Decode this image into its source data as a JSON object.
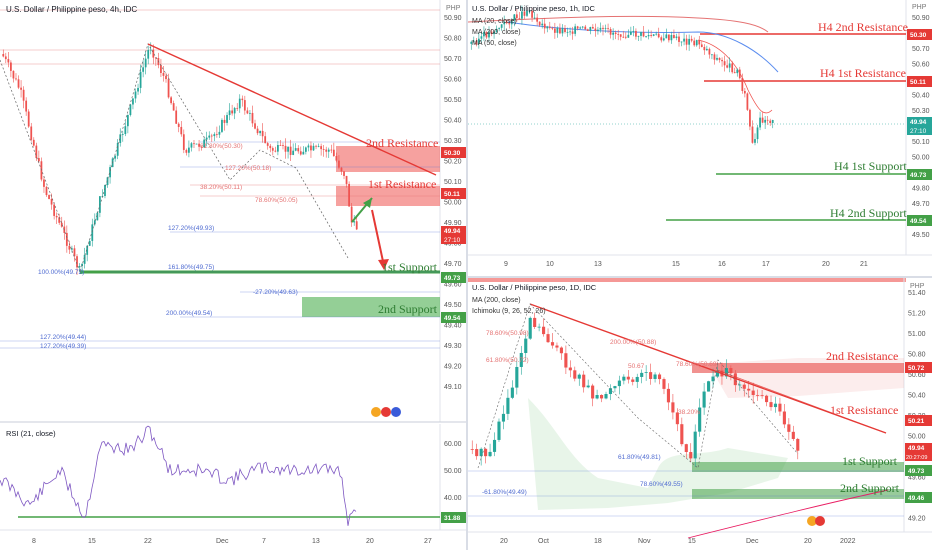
{
  "colors": {
    "up": "#26a69a",
    "down": "#ef5350",
    "res": "#e53935",
    "sup": "#43a047",
    "fib": "#4f6bd1",
    "axis": "#555555",
    "grid": "#f0f3fa"
  },
  "panel_4h": {
    "title": "U.S. Dollar / Philippine peso, 4h, IDC",
    "currency": "PHP",
    "y_ticks": [
      "50.90",
      "50.80",
      "50.70",
      "50.60",
      "50.50",
      "50.40",
      "50.30",
      "50.20",
      "50.10",
      "50.00",
      "49.90",
      "49.80",
      "49.70",
      "49.60",
      "49.50",
      "49.40",
      "49.30",
      "49.20",
      "49.10"
    ],
    "x_ticks": [
      "8",
      "15",
      "22",
      "Dec",
      "7",
      "13",
      "20",
      "27"
    ],
    "labels": {
      "res2": "2nd Resistance",
      "res1": "1st Resistance",
      "sup1": "1st Support",
      "sup2": "2nd Support"
    },
    "fibs": {
      "f1": "61.80%(50.30)",
      "f2": "127.20%(50.18)",
      "f3": "38.20%(50.11)",
      "f4": "78.60%(50.05)",
      "f5": "127.20%(49.93)",
      "f6": "161.80%(49.75)",
      "f7": "100.00%(49.72)",
      "f8": "-27.20%(49.63)",
      "f9": "200.00%(49.54)",
      "f10": "127.20%(49.44)",
      "f11": "127.20%(49.39)"
    },
    "badges": {
      "b1": "50.30",
      "b2": "50.11",
      "b3": "49.94",
      "b3t": "27:10",
      "b4": "49.73",
      "b5": "49.54"
    },
    "rsi": {
      "title": "RSI (21, close)",
      "ticks": [
        "60.00",
        "50.00",
        "40.00"
      ],
      "badge": "31.88"
    }
  },
  "panel_1h": {
    "title": "U.S. Dollar / Philippine peso, 1h, IDC",
    "currency": "PHP",
    "legend": [
      "MA (20, close)",
      "MA (200, close)",
      "MA (50, close)"
    ],
    "y_ticks": [
      "50.90",
      "50.80",
      "50.70",
      "50.60",
      "50.50",
      "50.40",
      "50.30",
      "50.20",
      "50.10",
      "50.00",
      "49.90",
      "49.80",
      "49.70",
      "49.60",
      "49.50"
    ],
    "x_ticks": [
      "9",
      "10",
      "13",
      "15",
      "16",
      "17",
      "20",
      "21"
    ],
    "labels": {
      "res2": "H4 2nd Resistance",
      "res1": "H4 1st Resistance",
      "sup1": "H4 1st Support",
      "sup2": "H4 2nd Support"
    },
    "badges": {
      "b1": "50.30",
      "b2": "50.11",
      "b3": "49.94",
      "b3t": "27:10",
      "b4": "49.73",
      "b5": "49.54"
    }
  },
  "panel_1d": {
    "title": "U.S. Dollar / Philippine peso, 1D, IDC",
    "currency": "PHP",
    "legend": [
      "MA (200, close)",
      "Ichimoku (9, 26, 52, 26)"
    ],
    "y_ticks": [
      "51.40",
      "51.20",
      "51.00",
      "50.80",
      "50.60",
      "50.40",
      "50.20",
      "50.00",
      "49.80",
      "49.60",
      "49.40",
      "49.20"
    ],
    "x_ticks": [
      "20",
      "Oct",
      "18",
      "Nov",
      "15",
      "Dec",
      "20",
      "2022"
    ],
    "labels": {
      "res2": "2nd Resistance",
      "res1": "1st Resistance",
      "sup1": "1st Support",
      "sup2": "2nd Support"
    },
    "fibs": {
      "f1": "78.60%(50.98)",
      "f2": "200.00%(50.88)",
      "f3": "61.80%(50.72)",
      "f4": "50.67",
      "f5": "78.60%(50.69)",
      "f6": "38.20%",
      "f7": "61.80%(49.81)",
      "f8": "-61.80%(49.49)",
      "f9": "78.60%(49.55)"
    },
    "badges": {
      "b1": "50.72",
      "b2": "50.21",
      "b3": "49.94",
      "b3t": "20:27:09",
      "b4": "49.73",
      "b5": "49.46"
    }
  },
  "chart_data": [
    {
      "type": "line",
      "title": "U.S. Dollar / Philippine peso, 4h, IDC",
      "x": [
        "8",
        "15",
        "22",
        "Dec",
        "7",
        "13",
        "20"
      ],
      "series": [
        {
          "values": [
            50.55,
            49.72,
            50.78,
            50.3,
            50.35,
            50.3,
            49.94
          ]
        }
      ],
      "levels": {
        "2nd Resistance": 50.3,
        "1st Resistance": 50.11,
        "1st Support": 49.73,
        "2nd Support": 49.54
      },
      "ylim": [
        49.05,
        50.95
      ]
    },
    {
      "type": "line",
      "title": "RSI (21, close)",
      "ylim": [
        28,
        66
      ],
      "levels": [
        31.88
      ]
    },
    {
      "type": "line",
      "title": "U.S. Dollar / Philippine peso, 1h, IDC",
      "x": [
        "9",
        "10",
        "13",
        "15",
        "16",
        "17"
      ],
      "series": [
        {
          "values": [
            50.7,
            50.9,
            50.77,
            50.72,
            50.55,
            49.94
          ]
        }
      ],
      "levels": {
        "H4 2nd Resistance": 50.3,
        "H4 1st Resistance": 50.11,
        "H4 1st Support": 49.73,
        "H4 2nd Support": 49.54
      },
      "ylim": [
        49.45,
        50.98
      ]
    },
    {
      "type": "line",
      "title": "U.S. Dollar / Philippine peso, 1D, IDC",
      "x": [
        "20",
        "Oct",
        "18",
        "Nov",
        "15",
        "Dec",
        "20"
      ],
      "series": [
        {
          "values": [
            49.85,
            51.2,
            50.55,
            50.35,
            49.81,
            50.65,
            49.94
          ]
        }
      ],
      "levels": {
        "2nd Resistance": 50.72,
        "1st Resistance": 50.21,
        "1st Support": 49.73,
        "2nd Support": 49.46
      },
      "ylim": [
        49.15,
        51.45
      ]
    }
  ]
}
